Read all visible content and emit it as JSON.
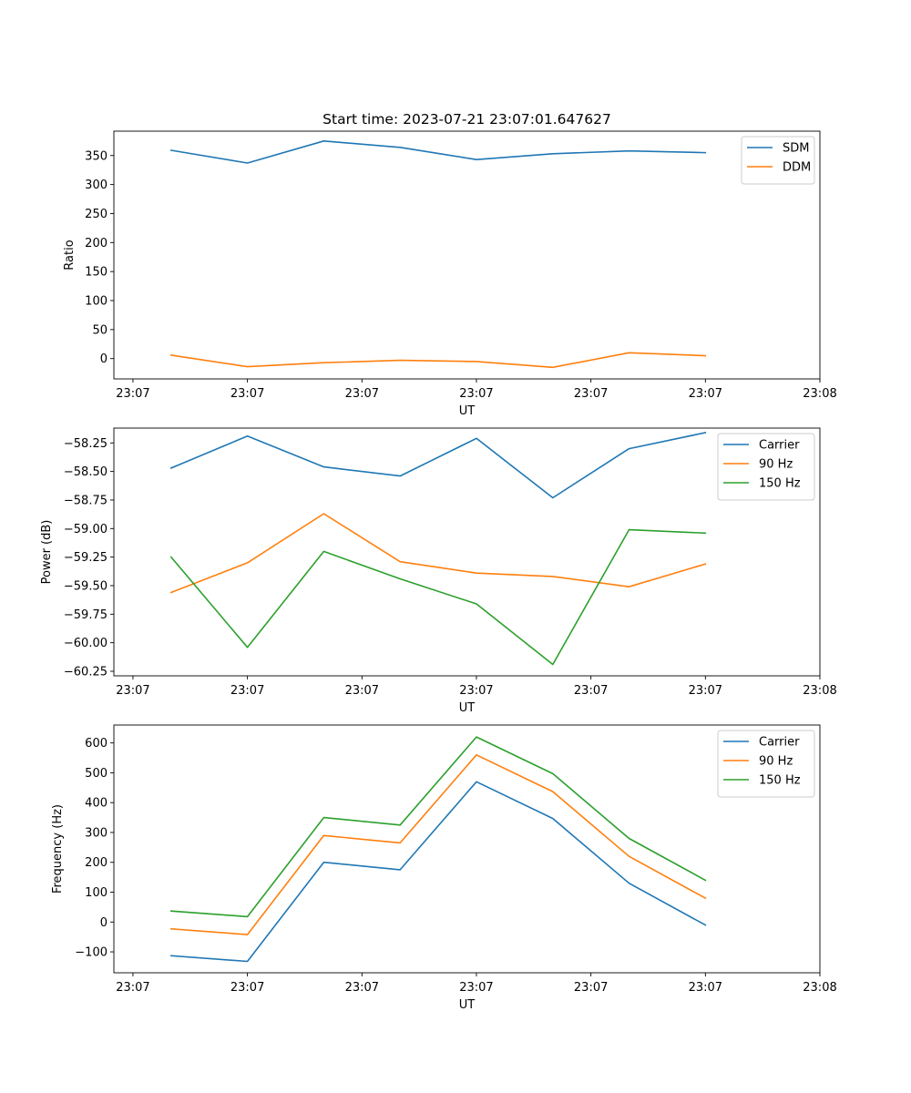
{
  "chart_data": [
    {
      "type": "line",
      "title": "Start time: 2023-07-21 23:07:01.647627",
      "xlabel": "UT",
      "ylabel": "Ratio",
      "ylim": [
        -35,
        392
      ],
      "yticks": [
        0,
        50,
        100,
        150,
        200,
        250,
        300,
        350
      ],
      "ytick_labels": [
        "0",
        "50",
        "100",
        "150",
        "200",
        "250",
        "300",
        "350"
      ],
      "xlim": [
        -0.75,
        8.5
      ],
      "xticks": [
        -0.5,
        1.0,
        2.5,
        4.0,
        5.5,
        7.0,
        8.5
      ],
      "xtick_labels": [
        "23:07",
        "23:07",
        "23:07",
        "23:07",
        "23:07",
        "23:07",
        "23:08"
      ],
      "x": [
        0,
        1,
        2,
        3,
        4,
        5,
        6,
        7
      ],
      "legend": "top-right",
      "series": [
        {
          "name": "SDM",
          "color": "#1f77b4",
          "values": [
            359,
            337,
            375,
            364,
            343,
            353,
            358,
            355
          ]
        },
        {
          "name": "DDM",
          "color": "#ff7f0e",
          "values": [
            6,
            -14,
            -7,
            -3,
            -5,
            -15,
            10,
            5
          ]
        }
      ]
    },
    {
      "type": "line",
      "title": "",
      "xlabel": "UT",
      "ylabel": "Power (dB)",
      "ylim": [
        -60.29,
        -58.12
      ],
      "yticks": [
        -60.25,
        -60.0,
        -59.75,
        -59.5,
        -59.25,
        -59.0,
        -58.75,
        -58.5,
        -58.25
      ],
      "ytick_labels": [
        "−60.25",
        "−60.00",
        "−59.75",
        "−59.50",
        "−59.25",
        "−59.00",
        "−58.75",
        "−58.50",
        "−58.25"
      ],
      "xlim": [
        -0.75,
        8.5
      ],
      "xticks": [
        -0.5,
        1.0,
        2.5,
        4.0,
        5.5,
        7.0,
        8.5
      ],
      "xtick_labels": [
        "23:07",
        "23:07",
        "23:07",
        "23:07",
        "23:07",
        "23:07",
        "23:08"
      ],
      "x": [
        0,
        1,
        2,
        3,
        4,
        5,
        6,
        7
      ],
      "legend": "top-right",
      "series": [
        {
          "name": "Carrier",
          "color": "#1f77b4",
          "values": [
            -58.47,
            -58.19,
            -58.46,
            -58.54,
            -58.21,
            -58.73,
            -58.3,
            -58.16
          ]
        },
        {
          "name": "90 Hz",
          "color": "#ff7f0e",
          "values": [
            -59.56,
            -59.3,
            -58.87,
            -59.29,
            -59.39,
            -59.42,
            -59.51,
            -59.31
          ]
        },
        {
          "name": "150 Hz",
          "color": "#2ca02c",
          "values": [
            -59.25,
            -60.04,
            -59.2,
            -59.44,
            -59.66,
            -60.19,
            -59.01,
            -59.04
          ]
        }
      ]
    },
    {
      "type": "line",
      "title": "",
      "xlabel": "UT",
      "ylabel": "Frequency (Hz)",
      "ylim": [
        -170,
        660
      ],
      "yticks": [
        -100,
        0,
        100,
        200,
        300,
        400,
        500,
        600
      ],
      "ytick_labels": [
        "−100",
        "0",
        "100",
        "200",
        "300",
        "400",
        "500",
        "600"
      ],
      "xlim": [
        -0.75,
        8.5
      ],
      "xticks": [
        -0.5,
        1.0,
        2.5,
        4.0,
        5.5,
        7.0,
        8.5
      ],
      "xtick_labels": [
        "23:07",
        "23:07",
        "23:07",
        "23:07",
        "23:07",
        "23:07",
        "23:08"
      ],
      "x": [
        0,
        1,
        2,
        3,
        4,
        5,
        6,
        7
      ],
      "legend": "top-right",
      "series": [
        {
          "name": "Carrier",
          "color": "#1f77b4",
          "values": [
            -113,
            -132,
            200,
            175,
            470,
            347,
            130,
            -10
          ]
        },
        {
          "name": "90 Hz",
          "color": "#ff7f0e",
          "values": [
            -23,
            -42,
            290,
            265,
            560,
            437,
            220,
            80
          ]
        },
        {
          "name": "150 Hz",
          "color": "#2ca02c",
          "values": [
            37,
            18,
            350,
            325,
            620,
            497,
            280,
            140
          ]
        }
      ]
    }
  ]
}
